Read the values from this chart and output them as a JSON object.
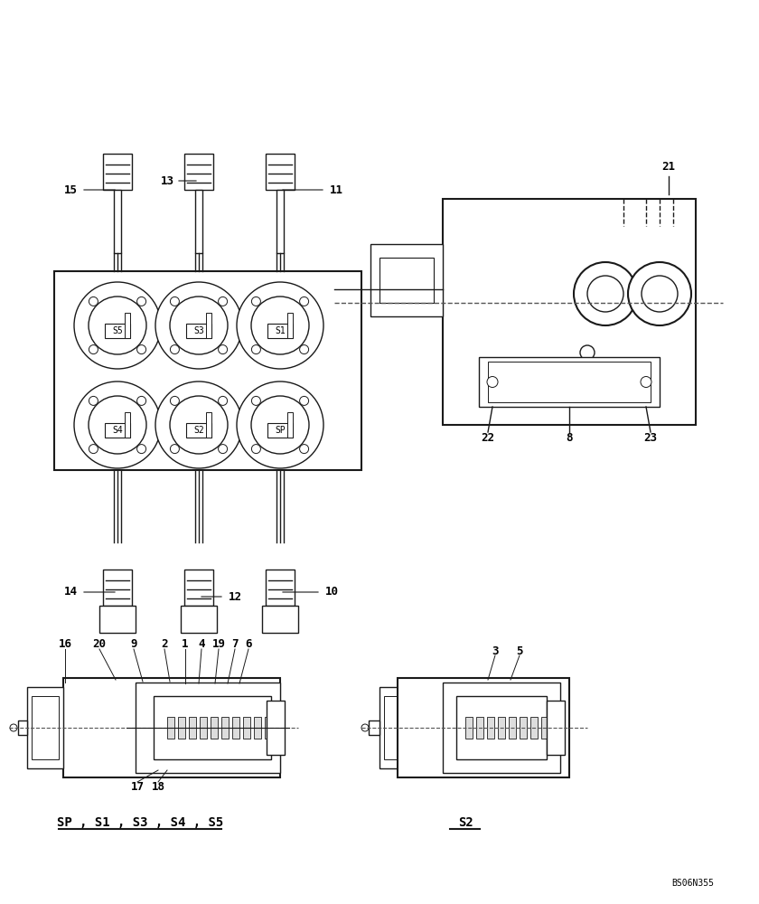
{
  "bg_color": "#ffffff",
  "line_color": "#1a1a1a",
  "text_color": "#000000",
  "fig_width": 8.4,
  "fig_height": 10.0,
  "dpi": 100,
  "watermark": "BS06N355",
  "label_sp_s1": "SP , S1 , S3 , S4 , S5",
  "label_s2": "S2",
  "solenoid_labels": [
    "S5",
    "S3",
    "S1",
    "S4",
    "S2",
    "SP"
  ],
  "top_connectors_labels": [
    "15",
    "13",
    "11"
  ],
  "bottom_connectors_labels": [
    "14",
    "12",
    "10"
  ],
  "side_view_labels": [
    "21",
    "22",
    "8",
    "23"
  ],
  "bottom_left_labels": [
    "16",
    "20",
    "9",
    "2",
    "1",
    "4",
    "19",
    "7",
    "6",
    "17",
    "18"
  ],
  "bottom_right_labels": [
    "3",
    "5"
  ]
}
